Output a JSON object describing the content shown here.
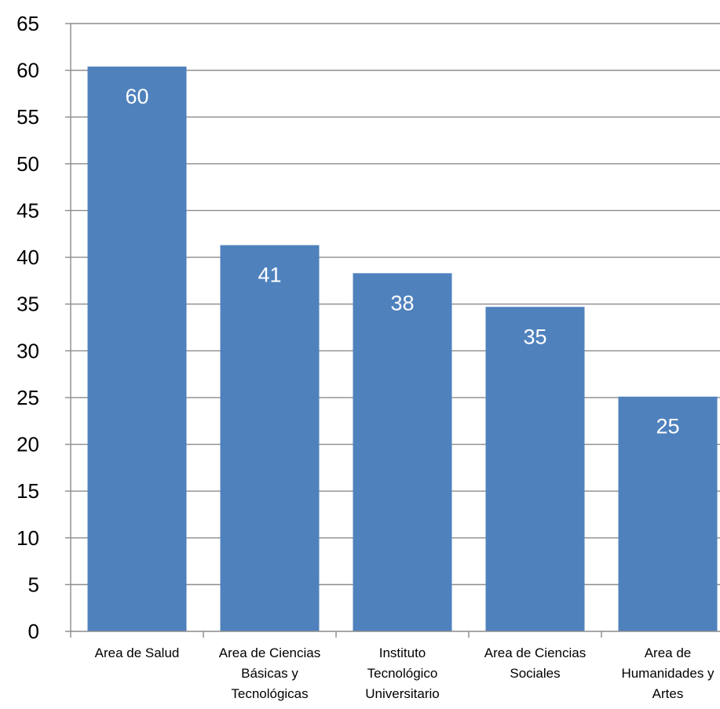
{
  "chart_data": {
    "type": "bar",
    "categories": [
      "Area de Salud",
      "Area de Ciencias Básicas y Tecnológicas",
      "Instituto Tecnológico Universitario",
      "Area de Ciencias Sociales",
      "Area de Humanidades y Artes"
    ],
    "category_lines": [
      [
        "Area de Salud"
      ],
      [
        "Area de Ciencias",
        "Básicas y",
        "Tecnológicas"
      ],
      [
        "Instituto",
        "Tecnológico",
        "Universitario"
      ],
      [
        "Area de Ciencias",
        "Sociales"
      ],
      [
        "Area de",
        "Humanidades y",
        "Artes"
      ]
    ],
    "values": [
      60.4,
      41.3,
      38.3,
      34.7,
      25.1
    ],
    "data_labels": [
      "60",
      "41",
      "38",
      "35",
      "25"
    ],
    "yticks": [
      "0",
      "5",
      "10",
      "15",
      "20",
      "25",
      "30",
      "35",
      "40",
      "45",
      "50",
      "55",
      "60",
      "65"
    ],
    "ylim": [
      0,
      65
    ],
    "grid": true,
    "bar_color": "#4f81bd",
    "title": "",
    "xlabel": "",
    "ylabel": ""
  }
}
